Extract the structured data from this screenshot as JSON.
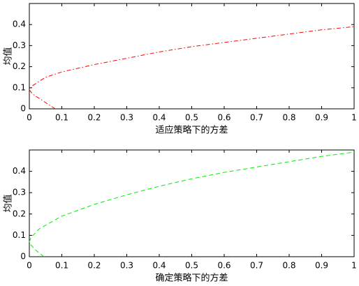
{
  "chart_data": [
    {
      "type": "line",
      "xlabel": "适应策略下的方差",
      "ylabel": "均值",
      "xlim": [
        0,
        1
      ],
      "ylim": [
        0,
        0.5
      ],
      "xticks": [
        0,
        0.1,
        0.2,
        0.3,
        0.4,
        0.5,
        0.6,
        0.7,
        0.8,
        0.9,
        1
      ],
      "yticks": [
        0,
        0.1,
        0.2,
        0.3,
        0.4
      ],
      "line_style": "dashdot",
      "series": [
        {
          "color": "#ff0000",
          "x": [
            0.08,
            0.04,
            0.01,
            0,
            0.01,
            0.05,
            0.1,
            0.2,
            0.3,
            0.4,
            0.5,
            0.6,
            0.7,
            0.8,
            0.9,
            1
          ],
          "values": [
            0,
            0.04,
            0.07,
            0.09,
            0.11,
            0.15,
            0.175,
            0.21,
            0.24,
            0.27,
            0.295,
            0.315,
            0.335,
            0.355,
            0.375,
            0.39
          ]
        }
      ]
    },
    {
      "type": "line",
      "xlabel": "确定策略下的方差",
      "ylabel": "均值",
      "xlim": [
        0,
        1
      ],
      "ylim": [
        0,
        0.5
      ],
      "xticks": [
        0,
        0.1,
        0.2,
        0.3,
        0.4,
        0.5,
        0.6,
        0.7,
        0.8,
        0.9,
        1
      ],
      "yticks": [
        0,
        0.1,
        0.2,
        0.3,
        0.4
      ],
      "line_style": "dashed",
      "series": [
        {
          "color": "#00ee00",
          "x": [
            0.045,
            0.02,
            0.005,
            0,
            0.005,
            0.03,
            0.1,
            0.2,
            0.3,
            0.4,
            0.5,
            0.6,
            0.7,
            0.8,
            0.9,
            1
          ],
          "values": [
            0,
            0.03,
            0.055,
            0.07,
            0.09,
            0.13,
            0.19,
            0.245,
            0.29,
            0.33,
            0.365,
            0.395,
            0.42,
            0.445,
            0.47,
            0.49
          ]
        }
      ]
    }
  ]
}
